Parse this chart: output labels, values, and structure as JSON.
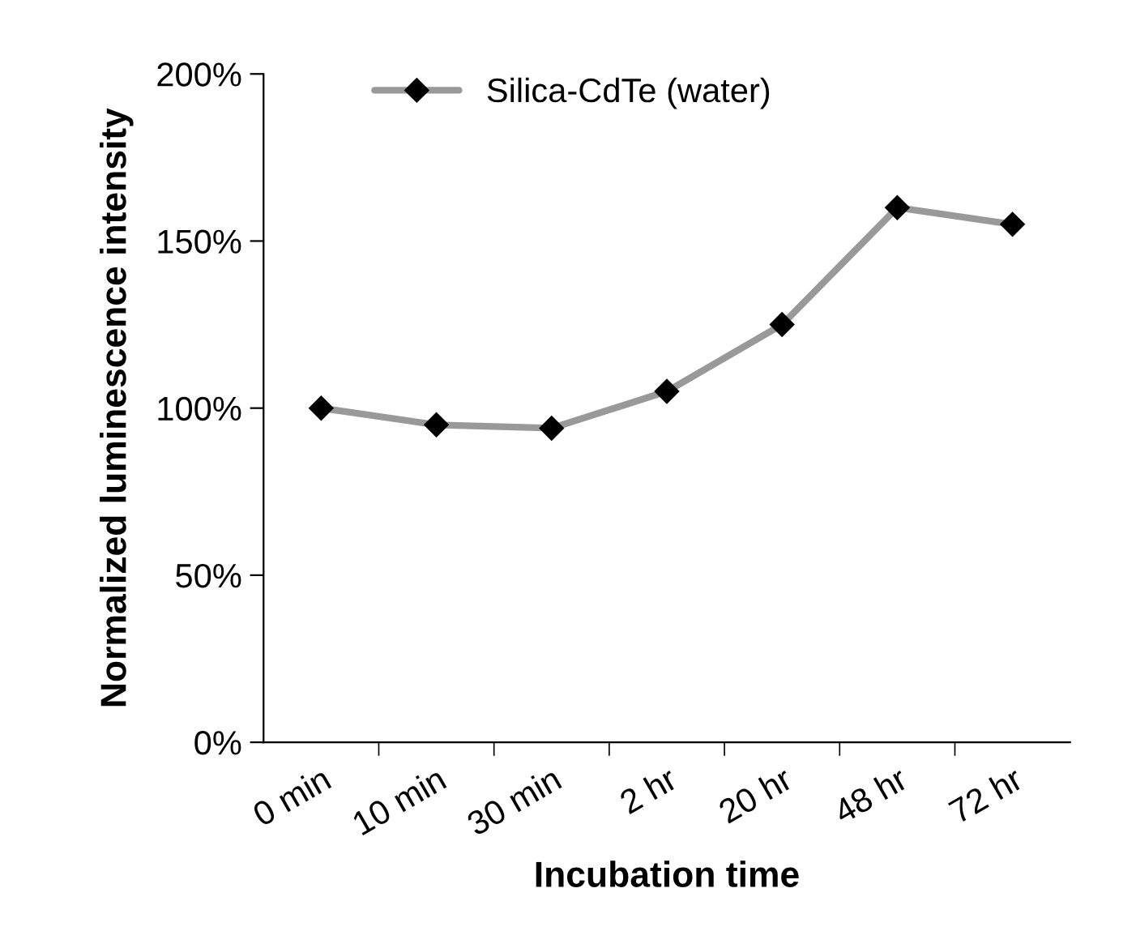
{
  "chart_data": {
    "type": "line",
    "xlabel": "Incubation time",
    "ylabel": "Normalized luminescence intensity",
    "categories": [
      "0 min",
      "10 min",
      "30 min",
      "2 hr",
      "20 hr",
      "48 hr",
      "72 hr"
    ],
    "series": [
      {
        "name": "Silica-CdTe (water)",
        "color": "#999999",
        "values": [
          100,
          95,
          94,
          105,
          125,
          160,
          155
        ]
      }
    ],
    "ylim": [
      0,
      200
    ],
    "yticks": [
      {
        "value": 0,
        "label": "0%"
      },
      {
        "value": 50,
        "label": "50%"
      },
      {
        "value": 100,
        "label": "100%"
      },
      {
        "value": 150,
        "label": "150%"
      },
      {
        "value": 200,
        "label": "200%"
      }
    ],
    "grid": false,
    "legend": "top left",
    "marker": "diamond",
    "line_style": "solid"
  }
}
